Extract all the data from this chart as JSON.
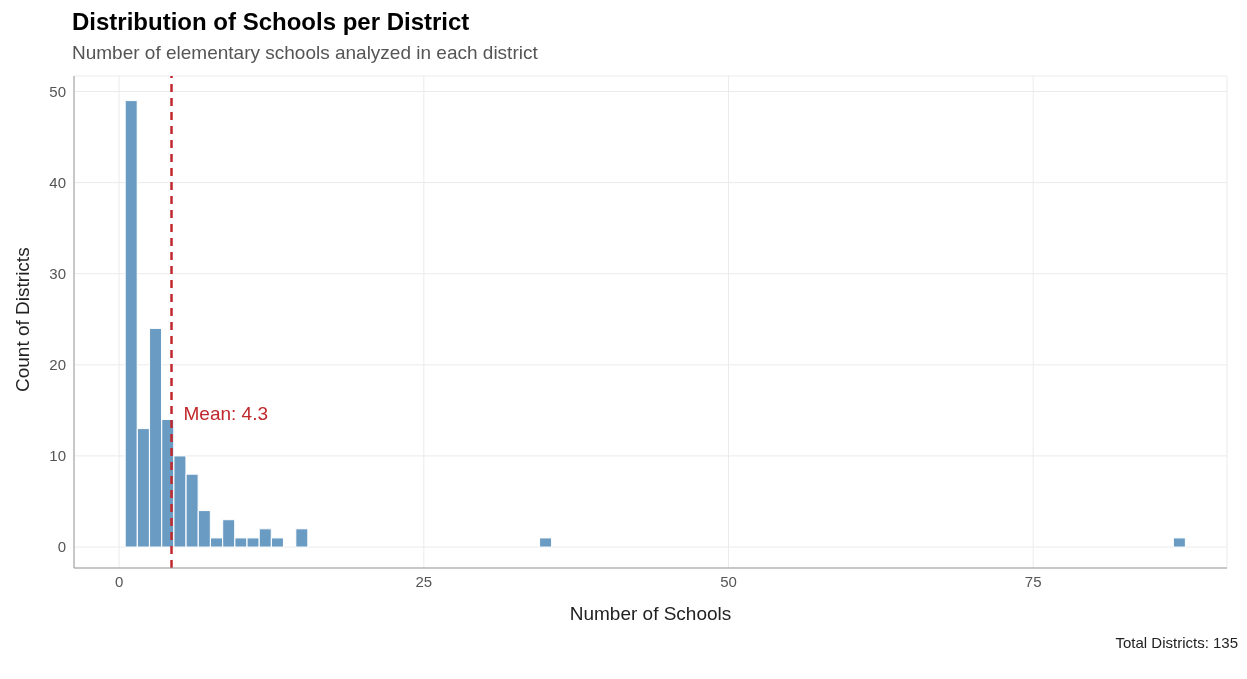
{
  "chart_data": {
    "type": "histogram",
    "title": "Distribution of Schools per District",
    "subtitle": "Number of elementary schools analyzed in each district",
    "xlabel": "Number of Schools",
    "ylabel": "Count of Districts",
    "annotations": [
      "Total Districts: 135"
    ],
    "bins": [
      0.5,
      1.5,
      2.5,
      3.5,
      4.5,
      5.5,
      6.5,
      7.5,
      8.5,
      9.5,
      10.5,
      11.5,
      12.5,
      13.5,
      14.5,
      15.5,
      16.5,
      17.5,
      18.5,
      19.5,
      20.5,
      21.5,
      22.5,
      23.5,
      24.5,
      25.5,
      26.5,
      27.5,
      28.5,
      29.5,
      30.5,
      31.5,
      32.5,
      33.5,
      34.5,
      35.5,
      36.5,
      37.5,
      38.5,
      39.5,
      40.5,
      41.5,
      42.5,
      43.5,
      44.5,
      45.5,
      46.5,
      47.5,
      48.5,
      49.5,
      50.5,
      51.5,
      52.5,
      53.5,
      54.5,
      55.5,
      56.5,
      57.5,
      58.5,
      59.5,
      60.5,
      61.5,
      62.5,
      63.5,
      64.5,
      65.5,
      66.5,
      67.5,
      68.5,
      69.5,
      70.5,
      71.5,
      72.5,
      73.5,
      74.5,
      75.5,
      76.5,
      77.5,
      78.5,
      79.5,
      80.5,
      81.5,
      82.5,
      83.5,
      84.5,
      85.5,
      86.5,
      87.5
    ],
    "values": [
      49,
      13,
      24,
      14,
      10,
      8,
      4,
      1,
      3,
      1,
      1,
      2,
      1,
      0,
      2,
      0,
      0,
      0,
      0,
      0,
      0,
      0,
      0,
      0,
      0,
      0,
      0,
      0,
      0,
      0,
      0,
      0,
      0,
      0,
      1,
      0,
      0,
      0,
      0,
      0,
      0,
      0,
      0,
      0,
      0,
      0,
      0,
      0,
      0,
      0,
      0,
      0,
      0,
      0,
      0,
      0,
      0,
      0,
      0,
      0,
      0,
      0,
      0,
      0,
      0,
      0,
      0,
      0,
      0,
      0,
      0,
      0,
      0,
      0,
      0,
      0,
      0,
      0,
      0,
      0,
      0,
      0,
      0,
      0,
      0,
      0,
      1
    ],
    "color": "#6a9bc3",
    "xlim": [
      -3.7,
      90.9
    ],
    "xticks": [
      0,
      25,
      50,
      75
    ],
    "ylim": [
      -2.3,
      51.7
    ],
    "yticks": [
      0,
      10,
      20,
      30,
      40,
      50
    ],
    "grid": true,
    "ref_lines": [
      {
        "axis": "x",
        "value": 4.3,
        "label": "Mean: 4.3",
        "color": "#c0282d",
        "line_style": "dashed"
      }
    ]
  }
}
